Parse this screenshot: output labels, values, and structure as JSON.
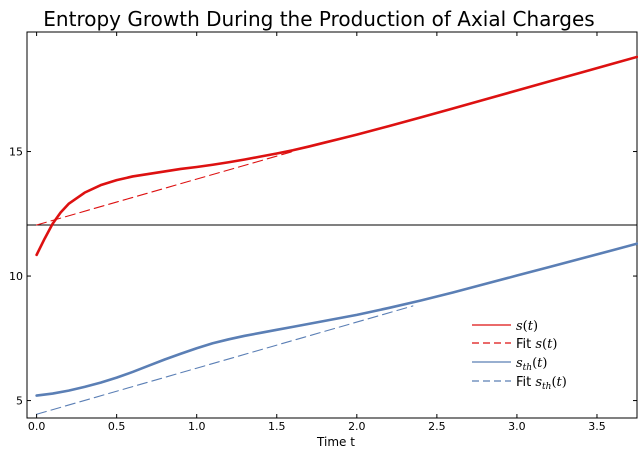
{
  "chart_data": {
    "type": "line",
    "title": "Entropy Growth During the Production of Axial Charges",
    "xlabel": "Time t",
    "ylabel": "",
    "xlim": [
      -0.06,
      3.75
    ],
    "ylim": [
      4.3,
      19.8
    ],
    "x_ticks": [
      0.0,
      0.5,
      1.0,
      1.5,
      2.0,
      2.5,
      3.0,
      3.5
    ],
    "x_tick_labels": [
      "0.0",
      "0.5",
      "1.0",
      "1.5",
      "2.0",
      "2.5",
      "3.0",
      "3.5"
    ],
    "y_ticks": [
      5,
      10,
      15
    ],
    "y_tick_labels": [
      "5",
      "10",
      "15"
    ],
    "hline": 12.05,
    "grid": false,
    "legend_position": "lower-right",
    "series": [
      {
        "name": "s(t)",
        "legend_label": "s(t)",
        "color": "#dd1111",
        "style": "solid",
        "x": [
          0.0,
          0.05,
          0.1,
          0.15,
          0.2,
          0.3,
          0.4,
          0.5,
          0.6,
          0.7,
          0.8,
          0.9,
          1.0,
          1.1,
          1.2,
          1.3,
          1.4,
          1.5,
          1.6,
          1.7,
          1.8,
          1.9,
          2.0,
          2.2,
          2.4,
          2.6,
          2.8,
          3.0,
          3.2,
          3.4,
          3.6,
          3.75
        ],
        "y": [
          10.85,
          11.5,
          12.1,
          12.55,
          12.9,
          13.35,
          13.65,
          13.85,
          14.0,
          14.1,
          14.2,
          14.3,
          14.38,
          14.47,
          14.57,
          14.68,
          14.8,
          14.92,
          15.05,
          15.2,
          15.36,
          15.52,
          15.68,
          16.02,
          16.37,
          16.73,
          17.09,
          17.45,
          17.81,
          18.17,
          18.53,
          18.8
        ]
      },
      {
        "name": "Fit s(t)",
        "legend_label": "Fit s(t)",
        "color": "#dd1111",
        "style": "dashed",
        "x": [
          0.0,
          1.6
        ],
        "y": [
          12.05,
          15.0
        ]
      },
      {
        "name": "s_th(t)",
        "legend_label": "s_th(t)",
        "color": "#5b7fb5",
        "style": "solid",
        "x": [
          0.0,
          0.1,
          0.2,
          0.3,
          0.4,
          0.5,
          0.6,
          0.7,
          0.8,
          0.9,
          1.0,
          1.1,
          1.2,
          1.3,
          1.4,
          1.5,
          1.6,
          1.7,
          1.8,
          1.9,
          2.0,
          2.2,
          2.4,
          2.6,
          2.8,
          3.0,
          3.2,
          3.4,
          3.6,
          3.75
        ],
        "y": [
          5.2,
          5.28,
          5.4,
          5.55,
          5.72,
          5.92,
          6.15,
          6.4,
          6.65,
          6.88,
          7.1,
          7.3,
          7.46,
          7.6,
          7.72,
          7.84,
          7.96,
          8.08,
          8.2,
          8.32,
          8.44,
          8.72,
          9.02,
          9.34,
          9.68,
          10.02,
          10.36,
          10.7,
          11.04,
          11.3
        ]
      },
      {
        "name": "Fit s_th(t)",
        "legend_label": "Fit s_th(t)",
        "color": "#5b7fb5",
        "style": "dashed",
        "x": [
          0.0,
          2.35
        ],
        "y": [
          4.45,
          8.8
        ]
      }
    ]
  }
}
